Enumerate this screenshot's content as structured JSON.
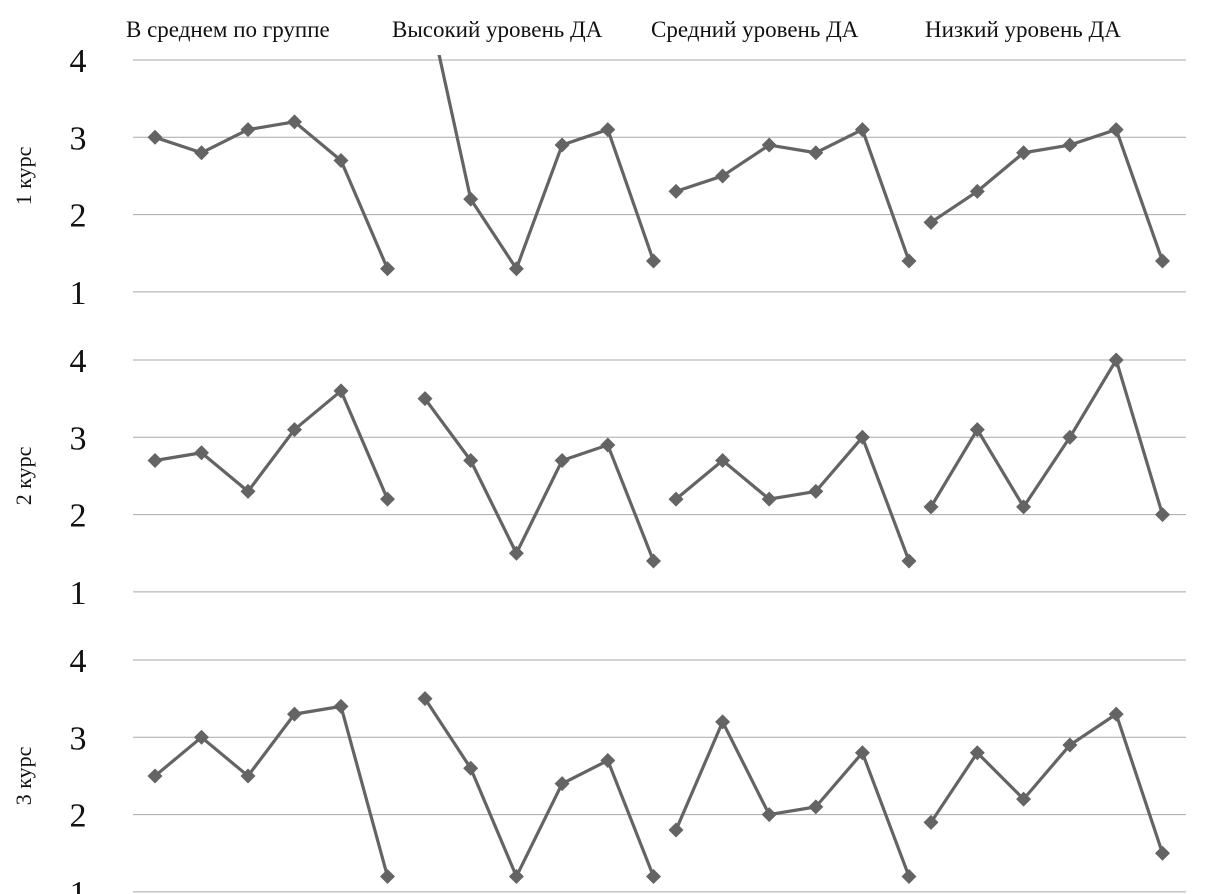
{
  "chart_data": {
    "type": "line",
    "marker": "diamond",
    "grid": true,
    "colors": {
      "line": "#646464",
      "marker": "#646464",
      "grid": "#a8a8a8"
    },
    "columns": [
      "В среднем по группе",
      "Высокий уровень ДА",
      "Средний уровень ДА",
      "Низкий уровень ДА"
    ],
    "ylim": [
      1,
      4
    ],
    "yticks": [
      "1",
      "2",
      "3",
      "4"
    ],
    "rows": [
      {
        "label": "1 курс",
        "series": [
          {
            "values": [
              3.0,
              2.8,
              3.1,
              3.2,
              2.7,
              1.3
            ]
          },
          {
            "values": [
              4.9,
              2.2,
              1.3,
              2.9,
              3.1,
              1.4
            ]
          },
          {
            "values": [
              2.3,
              2.5,
              2.9,
              2.8,
              3.1,
              1.4
            ]
          },
          {
            "values": [
              1.9,
              2.3,
              2.8,
              2.9,
              3.1,
              1.4
            ]
          }
        ]
      },
      {
        "label": "2 курс",
        "series": [
          {
            "values": [
              2.7,
              2.8,
              2.3,
              3.1,
              3.6,
              2.2
            ]
          },
          {
            "values": [
              3.5,
              2.7,
              1.5,
              2.7,
              2.9,
              1.4
            ]
          },
          {
            "values": [
              2.2,
              2.7,
              2.2,
              2.3,
              3.0,
              1.4
            ]
          },
          {
            "values": [
              2.1,
              3.1,
              2.1,
              3.0,
              4.0,
              2.0
            ]
          }
        ]
      },
      {
        "label": "3 курс",
        "series": [
          {
            "values": [
              2.5,
              3.0,
              2.5,
              3.3,
              3.4,
              1.2
            ]
          },
          {
            "values": [
              3.5,
              2.6,
              1.2,
              2.4,
              2.7,
              1.2
            ]
          },
          {
            "values": [
              1.8,
              3.2,
              2.0,
              2.1,
              2.8,
              1.2
            ]
          },
          {
            "values": [
              1.9,
              2.8,
              2.2,
              2.9,
              3.3,
              1.5
            ]
          }
        ]
      }
    ]
  }
}
